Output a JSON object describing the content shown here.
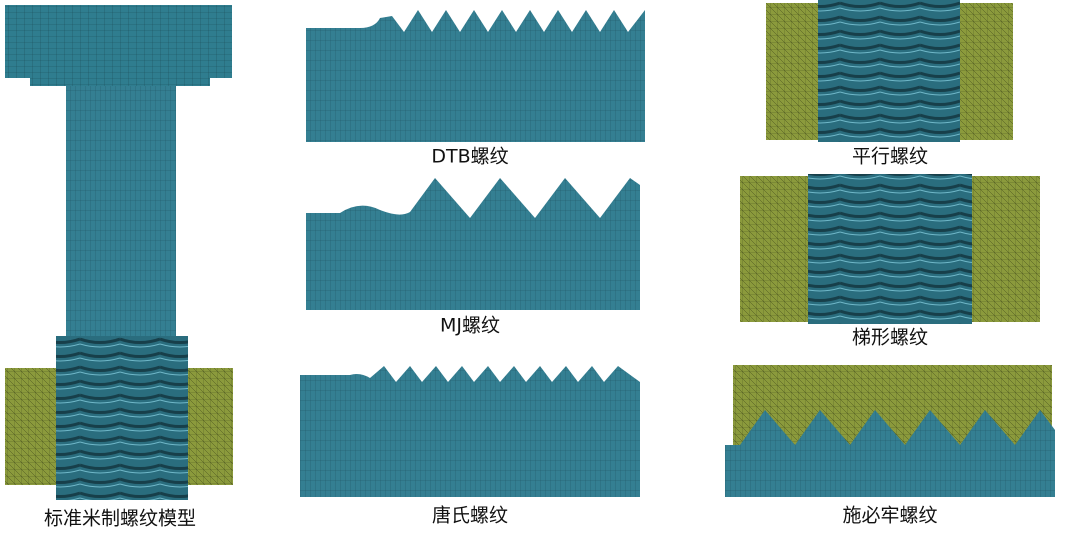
{
  "panels": [
    {
      "caption": "标准米制螺纹模型"
    },
    {
      "caption": "DTB螺纹"
    },
    {
      "caption": "MJ螺纹"
    },
    {
      "caption": "唐氏螺纹"
    },
    {
      "caption": "平行螺纹"
    },
    {
      "caption": "梯形螺纹"
    },
    {
      "caption": "施必牢螺纹"
    }
  ]
}
